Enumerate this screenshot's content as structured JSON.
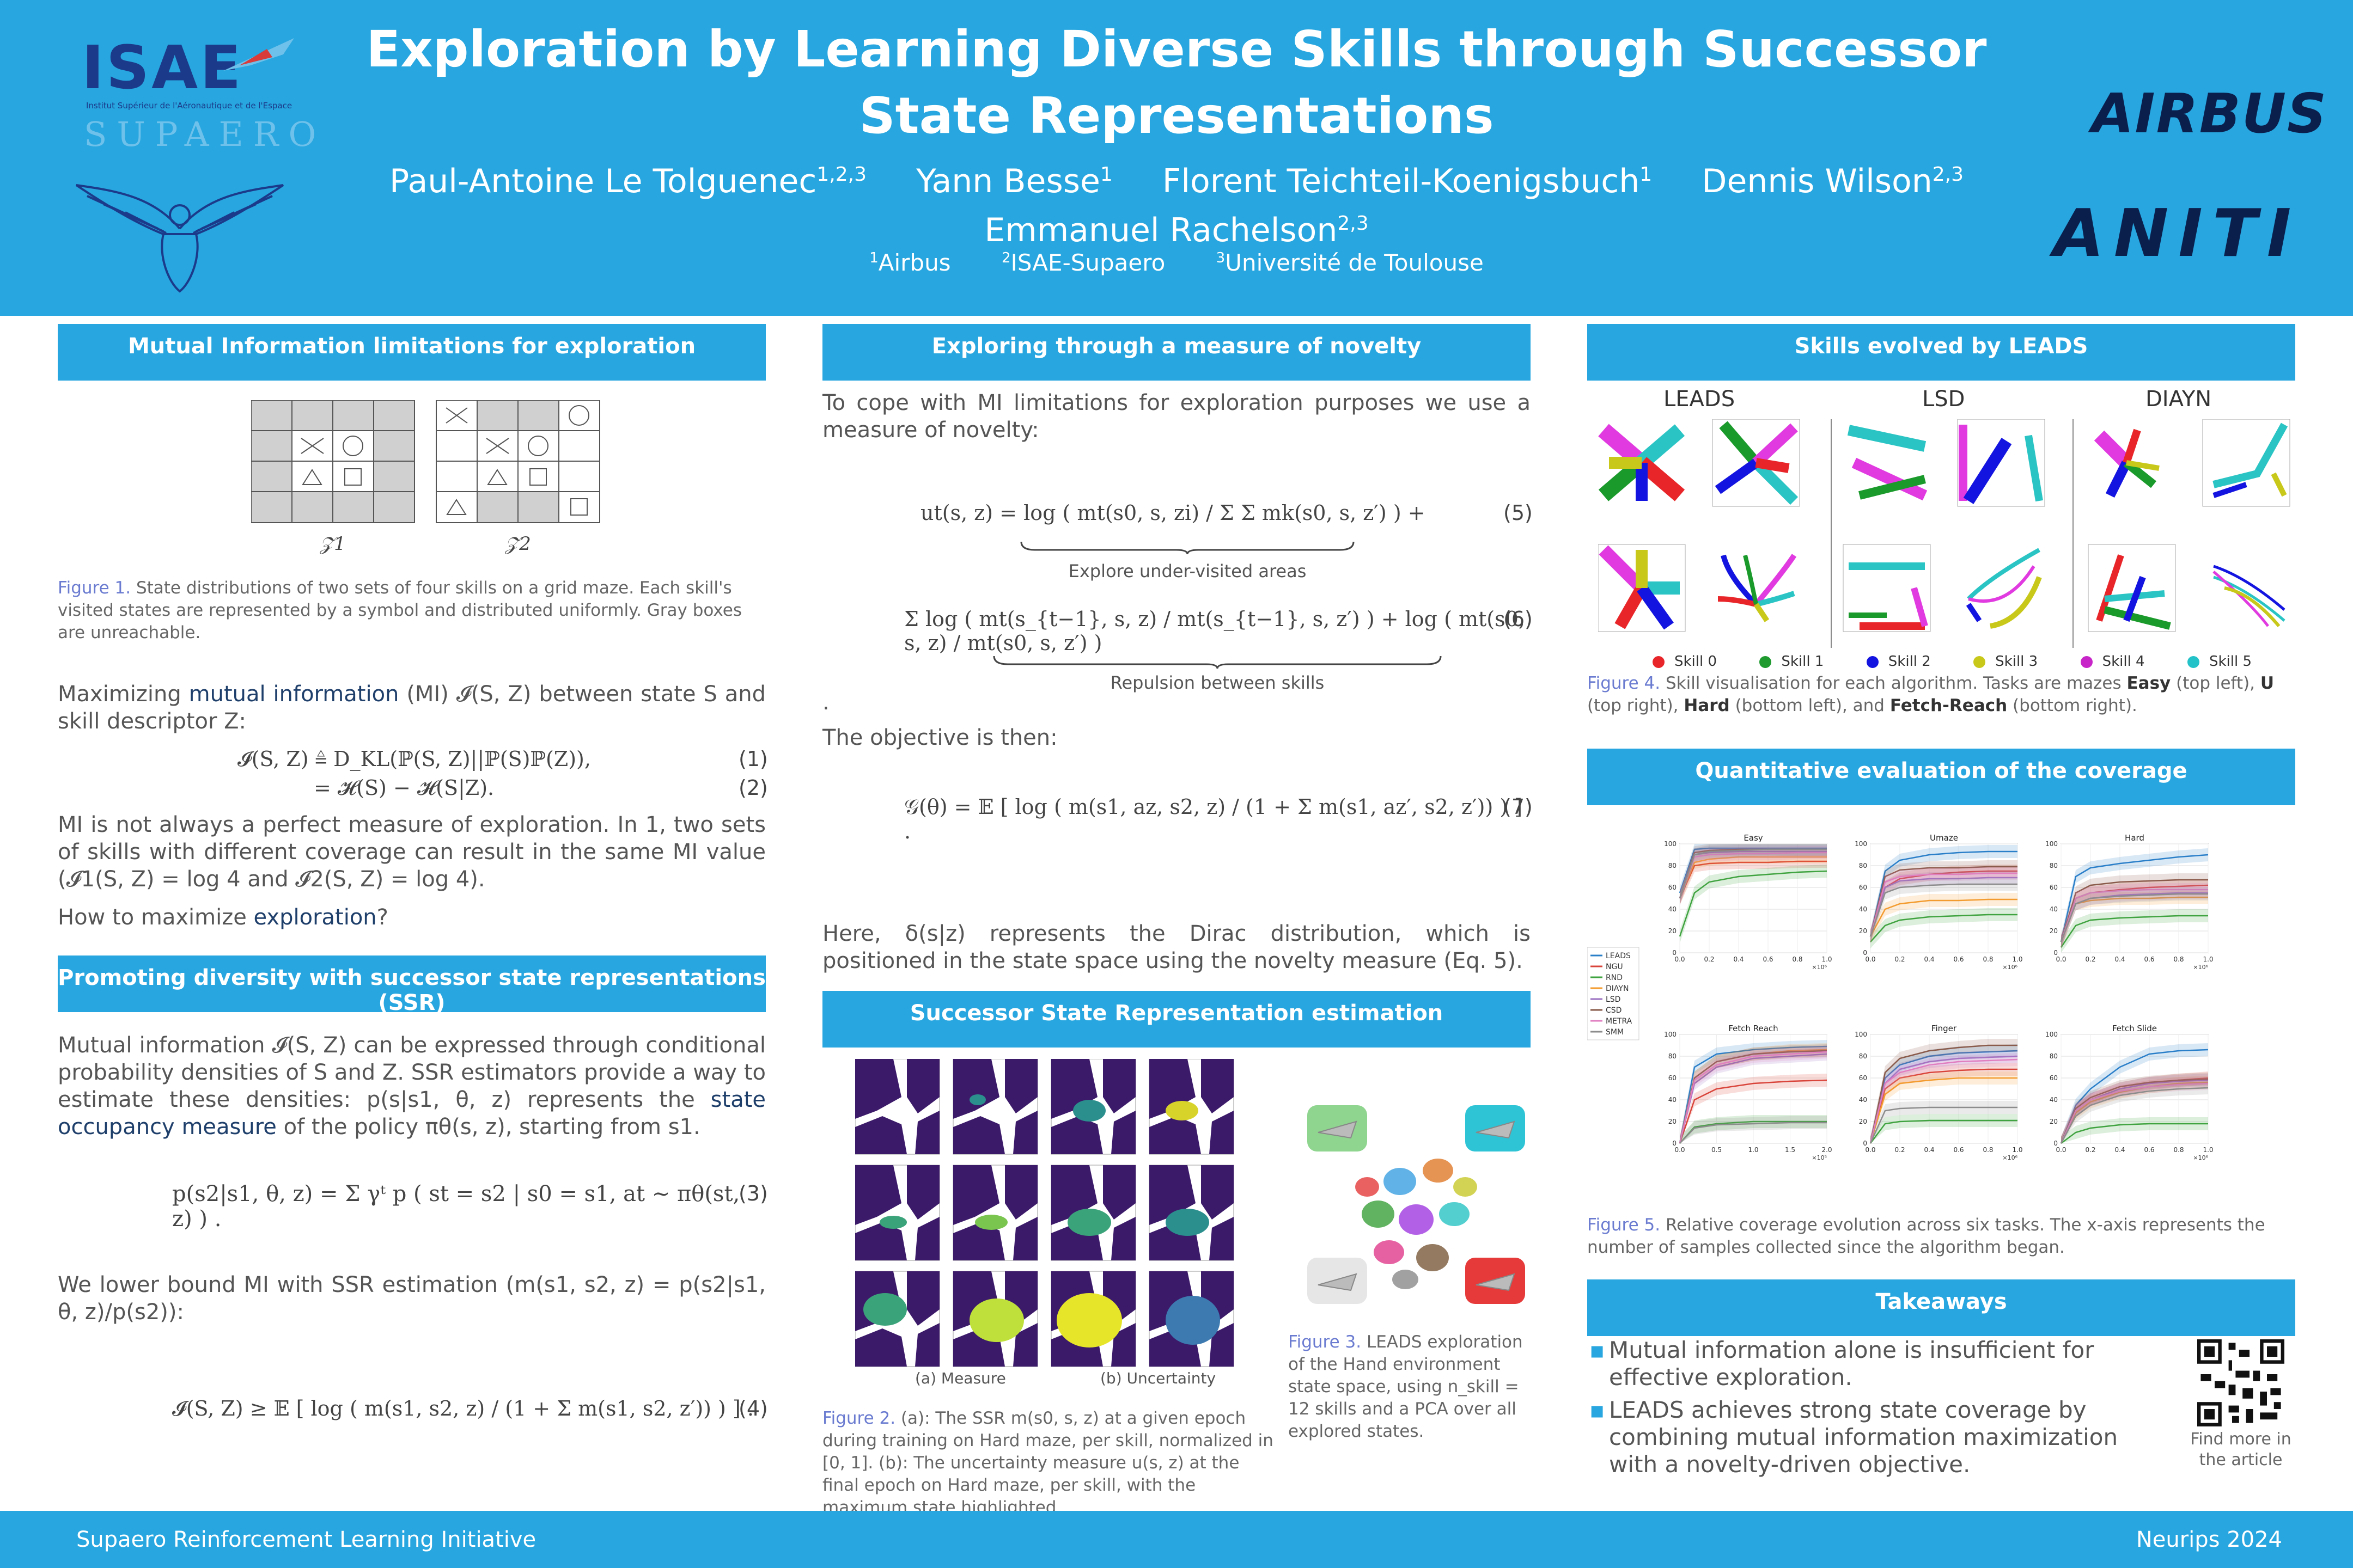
{
  "header": {
    "title_line1": "Exploration by Learning Diverse Skills through Successor",
    "title_line2": "State Representations",
    "authors": [
      {
        "name": "Paul-Antoine Le Tolguenec",
        "sup": "1,2,3"
      },
      {
        "name": "Yann Besse",
        "sup": "1"
      },
      {
        "name": "Florent Teichteil-Koenigsbuch",
        "sup": "1"
      },
      {
        "name": "Dennis Wilson",
        "sup": "2,3"
      }
    ],
    "author_last": {
      "name": "Emmanuel Rachelson",
      "sup": "2,3"
    },
    "affiliations": [
      {
        "sup": "1",
        "name": "Airbus"
      },
      {
        "sup": "2",
        "name": "ISAE-Supaero"
      },
      {
        "sup": "3",
        "name": "Université de Toulouse"
      }
    ],
    "logo_isae": "ISAE",
    "logo_isae_sub": "Institut Supérieur de l'Aéronautique et de l'Espace",
    "logo_supaero": "SUPAERO",
    "logo_airbus": "AIRBUS",
    "logo_aniti": "ANITI"
  },
  "col1": {
    "sec1": "Mutual Information limitations for exploration",
    "grid_labels": [
      "𝒵1",
      "𝒵2"
    ],
    "fig1_label": "Figure 1.",
    "fig1_caption": "State distributions of two sets of four skills on a grid maze. Each skill's visited states are represented by a symbol and distributed uniformly. Gray boxes are unreachable.",
    "p1_a": "Maximizing ",
    "p1_b": "mutual information",
    "p1_c": " (MI) 𝓘(S, Z) between state S and skill descriptor Z:",
    "eq1": "𝓘(S, Z) ≜ D_KL(ℙ(S, Z)||ℙ(S)ℙ(Z)),",
    "eq2": "= 𝓗(S) − 𝓗(S|Z).",
    "eq1n": "(1)",
    "eq2n": "(2)",
    "p2": "MI is not always a perfect measure of exploration. In 1, two sets of skills with different coverage can result in the same MI value (𝓘1(S, Z) = log 4 and 𝓘2(S, Z) = log 4).",
    "p3_a": "How to maximize ",
    "p3_b": "exploration",
    "p3_c": "?",
    "sec2": "Promoting diversity with successor state representations (SSR)",
    "p4_a": "Mutual information 𝓘(S, Z) can be expressed through conditional probability densities of S and Z. SSR estimators provide a way to estimate these densities: p(s|s1, θ, z) represents the ",
    "p4_b": "state occupancy measure",
    "p4_c": " of the policy πθ(s, z), starting from s1.",
    "eq3": "p(s2|s1, θ, z) = Σ γᵗ p ( st = s2 | s0 = s1, at ∼ πθ(st, z) ) .",
    "eq3n": "(3)",
    "p5": "We lower bound MI with SSR estimation (m(s1, s2, z) = p(s2|s1, θ, z)/p(s2)):",
    "eq4": "𝓘(S, Z) ≥ 𝔼 [ log ( m(s1, s2, z) / (1 + Σ m(s1, s2, z′)) ) ] .",
    "eq4n": "(4)"
  },
  "col2": {
    "sec1": "Exploring through a measure of novelty",
    "p1": "To cope with MI limitations for exploration purposes we use a measure of novelty:",
    "eq5": "ut(s, z) = log ( mt(s0, s, zi) / Σ Σ mk(s0, s, z′) ) +",
    "eq5_brace": "Explore under-visited areas",
    "eq5n": "(5)",
    "eq6": "Σ log ( mt(s_{t−1}, s, z) / mt(s_{t−1}, s, z′) ) + log ( mt(s0, s, z) / mt(s0, s, z′) )",
    "eq6_brace": "Repulsion between skills",
    "eq6n": "(6)",
    "dot": ".",
    "p2": "The objective is then:",
    "eq7": "𝒢(θ) = 𝔼 [ log ( m(s1, az, s2, z) / (1 + Σ m(s1, az′, s2, z′)) ) ] .",
    "eq7n": "(7)",
    "p3": "Here, δ(s|z) represents the Dirac distribution, which is positioned in the state space using the novelty measure (Eq. 5).",
    "sec2": "Successor State Representation estimation",
    "sub_a": "(a)  Measure",
    "sub_b": "(b)  Uncertainty",
    "fig2_label": "Figure 2.",
    "fig2_caption": "(a): The SSR m(s0, s, z) at a given epoch during training on Hard maze, per skill, normalized in [0, 1]. (b): The uncertainty measure u(s, z) at the final epoch on Hard maze, per skill, with the maximum state highlighted.",
    "fig3_label": "Figure 3.",
    "fig3_caption": "LEADS exploration of the Hand environment state space, using n_skill = 12 skills and a PCA over all explored states."
  },
  "col3": {
    "sec1": "Skills evolved by LEADS",
    "algos": [
      "LEADS",
      "LSD",
      "DIAYN"
    ],
    "skill_legend": [
      {
        "name": "Skill 0",
        "color": "#e8262a"
      },
      {
        "name": "Skill 1",
        "color": "#1f9a2f"
      },
      {
        "name": "Skill 2",
        "color": "#1414e0"
      },
      {
        "name": "Skill 3",
        "color": "#c8c81a"
      },
      {
        "name": "Skill 4",
        "color": "#c825c8"
      },
      {
        "name": "Skill 5",
        "color": "#22c2c8"
      }
    ],
    "fig4_label": "Figure 4.",
    "fig4_a": "Skill visualisation for each algorithm. Tasks are mazes ",
    "fig4_easy": "Easy",
    "fig4_b": " (top left), ",
    "fig4_u": "U",
    "fig4_c": " (top right), ",
    "fig4_hard": "Hard",
    "fig4_d": " (bottom left), and ",
    "fig4_fr": "Fetch-Reach",
    "fig4_e": " (bottom right).",
    "sec2": "Quantitative evaluation of the coverage",
    "fig5_label": "Figure 5.",
    "fig5_caption": "Relative coverage evolution across six tasks. The x-axis represents the number of samples collected since the algorithm began.",
    "sec3": "Takeaways",
    "take1": "Mutual information alone is insufficient for effective exploration.",
    "take2": "LEADS achieves strong state coverage by combining mutual information maximization with a novelty-driven objective.",
    "qr_text": "Find more in the article"
  },
  "chart_data": [
    {
      "type": "line",
      "title": "Easy",
      "xlim": [
        0,
        1.0
      ],
      "x_scale": "×10⁶",
      "ylim": [
        0,
        100
      ],
      "x": [
        0,
        0.1,
        0.2,
        0.4,
        0.6,
        0.8,
        1.0
      ],
      "series": [
        {
          "name": "LEADS",
          "color": "#2a7fc9",
          "values": [
            55,
            95,
            96,
            96,
            96,
            96,
            96
          ]
        },
        {
          "name": "NGU",
          "color": "#d9443a",
          "values": [
            50,
            80,
            82,
            83,
            83,
            84,
            84
          ]
        },
        {
          "name": "RND",
          "color": "#3fa33f",
          "values": [
            15,
            55,
            65,
            70,
            72,
            74,
            75
          ]
        },
        {
          "name": "DIAYN",
          "color": "#f39b2e",
          "values": [
            50,
            83,
            86,
            88,
            88,
            88,
            88
          ]
        },
        {
          "name": "LSD",
          "color": "#9a6fc1",
          "values": [
            50,
            90,
            92,
            93,
            93,
            93,
            93
          ]
        },
        {
          "name": "CSD",
          "color": "#8a5a4a",
          "values": [
            50,
            92,
            94,
            95,
            95,
            95,
            95
          ]
        },
        {
          "name": "METRA",
          "color": "#e07ec0",
          "values": [
            50,
            88,
            90,
            91,
            91,
            92,
            92
          ]
        },
        {
          "name": "SMM",
          "color": "#8c8c8c",
          "values": [
            50,
            90,
            93,
            94,
            95,
            95,
            95
          ]
        }
      ]
    },
    {
      "type": "line",
      "title": "Umaze",
      "xlim": [
        0,
        1.0
      ],
      "x_scale": "×10⁶",
      "ylim": [
        0,
        100
      ],
      "x": [
        0,
        0.1,
        0.2,
        0.4,
        0.6,
        0.8,
        1.0
      ],
      "series": [
        {
          "name": "LEADS",
          "color": "#2a7fc9",
          "values": [
            15,
            75,
            85,
            90,
            92,
            93,
            93
          ]
        },
        {
          "name": "NGU",
          "color": "#d9443a",
          "values": [
            15,
            60,
            68,
            72,
            74,
            75,
            75
          ]
        },
        {
          "name": "RND",
          "color": "#3fa33f",
          "values": [
            10,
            25,
            30,
            33,
            34,
            35,
            35
          ]
        },
        {
          "name": "DIAYN",
          "color": "#f39b2e",
          "values": [
            15,
            40,
            45,
            48,
            48,
            49,
            49
          ]
        },
        {
          "name": "LSD",
          "color": "#9a6fc1",
          "values": [
            15,
            60,
            66,
            68,
            68,
            69,
            69
          ]
        },
        {
          "name": "CSD",
          "color": "#8a5a4a",
          "values": [
            15,
            70,
            76,
            78,
            78,
            79,
            79
          ]
        },
        {
          "name": "METRA",
          "color": "#e07ec0",
          "values": [
            15,
            65,
            70,
            72,
            72,
            73,
            73
          ]
        },
        {
          "name": "SMM",
          "color": "#8c8c8c",
          "values": [
            15,
            55,
            60,
            62,
            63,
            63,
            63
          ]
        }
      ]
    },
    {
      "type": "line",
      "title": "Hard",
      "xlim": [
        0,
        1.0
      ],
      "x_scale": "×10⁶",
      "ylim": [
        0,
        100
      ],
      "x": [
        0,
        0.1,
        0.2,
        0.4,
        0.6,
        0.8,
        1.0
      ],
      "series": [
        {
          "name": "LEADS",
          "color": "#2a7fc9",
          "values": [
            10,
            70,
            78,
            82,
            85,
            88,
            90
          ]
        },
        {
          "name": "NGU",
          "color": "#d9443a",
          "values": [
            10,
            50,
            55,
            58,
            60,
            61,
            62
          ]
        },
        {
          "name": "RND",
          "color": "#3fa33f",
          "values": [
            5,
            25,
            30,
            32,
            33,
            34,
            34
          ]
        },
        {
          "name": "DIAYN",
          "color": "#f39b2e",
          "values": [
            10,
            45,
            48,
            50,
            50,
            51,
            51
          ]
        },
        {
          "name": "LSD",
          "color": "#9a6fc1",
          "values": [
            10,
            45,
            50,
            53,
            54,
            55,
            55
          ]
        },
        {
          "name": "CSD",
          "color": "#8a5a4a",
          "values": [
            10,
            55,
            62,
            65,
            66,
            67,
            67
          ]
        },
        {
          "name": "METRA",
          "color": "#e07ec0",
          "values": [
            10,
            50,
            55,
            57,
            58,
            58,
            58
          ]
        },
        {
          "name": "SMM",
          "color": "#8c8c8c",
          "values": [
            10,
            45,
            50,
            52,
            53,
            54,
            54
          ]
        }
      ]
    },
    {
      "type": "line",
      "title": "Fetch Reach",
      "xlim": [
        0,
        2.0
      ],
      "x_scale": "×10⁵",
      "ylim": [
        0,
        100
      ],
      "x": [
        0,
        0.2,
        0.5,
        1.0,
        1.5,
        2.0
      ],
      "series": [
        {
          "name": "LEADS",
          "color": "#2a7fc9",
          "values": [
            0,
            70,
            82,
            86,
            88,
            89
          ]
        },
        {
          "name": "NGU",
          "color": "#d9443a",
          "values": [
            0,
            40,
            50,
            55,
            57,
            58
          ]
        },
        {
          "name": "RND",
          "color": "#3fa33f",
          "values": [
            0,
            15,
            18,
            20,
            20,
            20
          ]
        },
        {
          "name": "DIAYN",
          "color": "#f39b2e",
          "values": [
            0,
            60,
            75,
            82,
            85,
            86
          ]
        },
        {
          "name": "LSD",
          "color": "#9a6fc1",
          "values": [
            0,
            55,
            70,
            78,
            80,
            82
          ]
        },
        {
          "name": "CSD",
          "color": "#8a5a4a",
          "values": [
            0,
            60,
            75,
            82,
            84,
            85
          ]
        },
        {
          "name": "METRA",
          "color": "#e07ec0",
          "values": [
            0,
            58,
            72,
            80,
            82,
            84
          ]
        },
        {
          "name": "SMM",
          "color": "#8c8c8c",
          "values": [
            0,
            14,
            17,
            18,
            19,
            19
          ]
        }
      ]
    },
    {
      "type": "line",
      "title": "Finger",
      "xlim": [
        0,
        1.0
      ],
      "x_scale": "×10⁶",
      "ylim": [
        0,
        100
      ],
      "x": [
        0,
        0.1,
        0.2,
        0.4,
        0.6,
        0.8,
        1.0
      ],
      "series": [
        {
          "name": "LEADS",
          "color": "#2a7fc9",
          "values": [
            0,
            60,
            72,
            80,
            83,
            84,
            85
          ]
        },
        {
          "name": "NGU",
          "color": "#d9443a",
          "values": [
            0,
            50,
            60,
            65,
            67,
            68,
            68
          ]
        },
        {
          "name": "RND",
          "color": "#3fa33f",
          "values": [
            0,
            18,
            20,
            21,
            21,
            21,
            21
          ]
        },
        {
          "name": "DIAYN",
          "color": "#f39b2e",
          "values": [
            0,
            45,
            55,
            58,
            60,
            60,
            60
          ]
        },
        {
          "name": "LSD",
          "color": "#9a6fc1",
          "values": [
            0,
            55,
            68,
            75,
            78,
            79,
            80
          ]
        },
        {
          "name": "CSD",
          "color": "#8a5a4a",
          "values": [
            0,
            65,
            78,
            85,
            88,
            90,
            90
          ]
        },
        {
          "name": "METRA",
          "color": "#e07ec0",
          "values": [
            0,
            55,
            65,
            72,
            75,
            76,
            77
          ]
        },
        {
          "name": "SMM",
          "color": "#8c8c8c",
          "values": [
            0,
            30,
            32,
            33,
            33,
            33,
            33
          ]
        }
      ]
    },
    {
      "type": "line",
      "title": "Fetch Slide",
      "xlim": [
        0,
        1.0
      ],
      "x_scale": "×10⁶",
      "ylim": [
        0,
        100
      ],
      "x": [
        0,
        0.1,
        0.2,
        0.4,
        0.6,
        0.8,
        1.0
      ],
      "series": [
        {
          "name": "LEADS",
          "color": "#2a7fc9",
          "values": [
            0,
            35,
            50,
            70,
            82,
            85,
            86
          ]
        },
        {
          "name": "NGU",
          "color": "#d9443a",
          "values": [
            0,
            30,
            40,
            50,
            55,
            58,
            60
          ]
        },
        {
          "name": "RND",
          "color": "#3fa33f",
          "values": [
            0,
            10,
            14,
            17,
            18,
            18,
            18
          ]
        },
        {
          "name": "DIAYN",
          "color": "#f39b2e",
          "values": [
            0,
            28,
            38,
            47,
            52,
            55,
            56
          ]
        },
        {
          "name": "LSD",
          "color": "#9a6fc1",
          "values": [
            0,
            30,
            40,
            50,
            55,
            57,
            58
          ]
        },
        {
          "name": "CSD",
          "color": "#8a5a4a",
          "values": [
            0,
            32,
            42,
            52,
            56,
            58,
            59
          ]
        },
        {
          "name": "METRA",
          "color": "#e07ec0",
          "values": [
            0,
            30,
            40,
            48,
            52,
            54,
            55
          ]
        },
        {
          "name": "SMM",
          "color": "#8c8c8c",
          "values": [
            0,
            25,
            35,
            44,
            48,
            50,
            51
          ]
        }
      ]
    }
  ],
  "footer": {
    "left": "Supaero Reinforcement Learning Initiative",
    "right": "Neurips 2024"
  }
}
